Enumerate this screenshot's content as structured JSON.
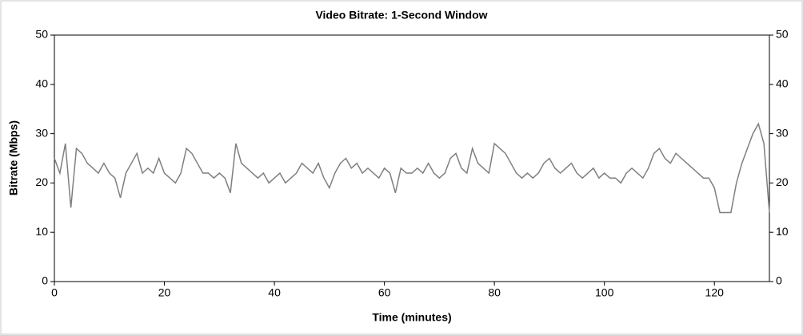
{
  "chart_data": {
    "type": "line",
    "title": "Video Bitrate: 1-Second Window",
    "xlabel": "Time (minutes)",
    "ylabel": "Bitrate (Mbps)",
    "x": [
      0,
      1,
      2,
      3,
      4,
      5,
      6,
      7,
      8,
      9,
      10,
      11,
      12,
      13,
      14,
      15,
      16,
      17,
      18,
      19,
      20,
      21,
      22,
      23,
      24,
      25,
      26,
      27,
      28,
      29,
      30,
      31,
      32,
      33,
      34,
      35,
      36,
      37,
      38,
      39,
      40,
      41,
      42,
      43,
      44,
      45,
      46,
      47,
      48,
      49,
      50,
      51,
      52,
      53,
      54,
      55,
      56,
      57,
      58,
      59,
      60,
      61,
      62,
      63,
      64,
      65,
      66,
      67,
      68,
      69,
      70,
      71,
      72,
      73,
      74,
      75,
      76,
      77,
      78,
      79,
      80,
      81,
      82,
      83,
      84,
      85,
      86,
      87,
      88,
      89,
      90,
      91,
      92,
      93,
      94,
      95,
      96,
      97,
      98,
      99,
      100,
      101,
      102,
      103,
      104,
      105,
      106,
      107,
      108,
      109,
      110,
      111,
      112,
      113,
      114,
      115,
      116,
      117,
      118,
      119,
      120,
      121,
      122,
      123,
      124,
      125,
      126,
      127,
      128,
      129,
      130
    ],
    "series": [
      {
        "name": "Bitrate",
        "color": "#7f7f7f",
        "values": [
          25,
          22,
          28,
          15,
          27,
          26,
          24,
          23,
          22,
          24,
          22,
          21,
          17,
          22,
          24,
          26,
          22,
          23,
          22,
          25,
          22,
          21,
          20,
          22,
          27,
          26,
          24,
          22,
          22,
          21,
          22,
          21,
          18,
          28,
          24,
          23,
          22,
          21,
          22,
          20,
          21,
          22,
          20,
          21,
          22,
          24,
          23,
          22,
          24,
          21,
          19,
          22,
          24,
          25,
          23,
          24,
          22,
          23,
          22,
          21,
          23,
          22,
          18,
          23,
          22,
          22,
          23,
          22,
          24,
          22,
          21,
          22,
          25,
          26,
          23,
          22,
          27,
          24,
          23,
          22,
          28,
          27,
          26,
          24,
          22,
          21,
          22,
          21,
          22,
          24,
          25,
          23,
          22,
          23,
          24,
          22,
          21,
          22,
          23,
          21,
          22,
          21,
          21,
          20,
          22,
          23,
          22,
          21,
          23,
          26,
          27,
          25,
          24,
          26,
          25,
          24,
          23,
          22,
          21,
          21,
          19,
          14,
          14,
          14,
          20,
          24,
          27,
          30,
          32,
          28,
          14
        ]
      }
    ],
    "xlim": [
      0,
      130
    ],
    "ylim": [
      0,
      50
    ],
    "xticks": [
      0,
      20,
      40,
      60,
      80,
      100,
      120
    ],
    "yticks": [
      0,
      10,
      20,
      30,
      40,
      50
    ]
  }
}
